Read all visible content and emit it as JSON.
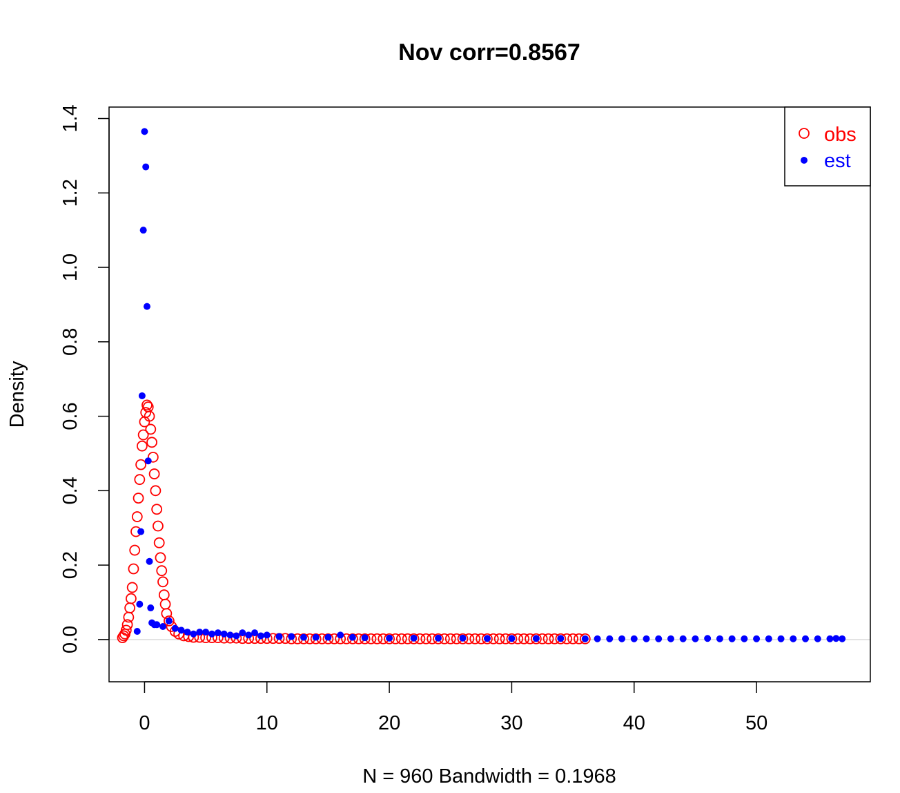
{
  "chart_data": {
    "type": "scatter",
    "title": "Nov corr=0.8567",
    "xlabel": "N = 960   Bandwidth = 0.1968",
    "ylabel": "Density",
    "xlim": [
      -2.9,
      59.3
    ],
    "ylim": [
      -0.1135,
      1.4307
    ],
    "x_ticks": [
      0,
      10,
      20,
      30,
      40,
      50
    ],
    "y_ticks": [
      0.0,
      0.2,
      0.4,
      0.6,
      0.8,
      1.0,
      1.2,
      1.4
    ],
    "x_tick_labels": [
      "0",
      "10",
      "20",
      "30",
      "40",
      "50"
    ],
    "y_tick_labels": [
      "0.0",
      "0.2",
      "0.4",
      "0.6",
      "0.8",
      "1.0",
      "1.2",
      "1.4"
    ],
    "grid": false,
    "baseline": 0,
    "legend": {
      "position": "top-right",
      "entries": [
        {
          "label": "obs",
          "color": "#ff0000",
          "marker": "open-circle"
        },
        {
          "label": "est",
          "color": "#0000ff",
          "marker": "filled-circle"
        }
      ]
    },
    "series": [
      {
        "name": "obs",
        "color": "#ff0000",
        "marker": "open-circle",
        "x": [
          -1.8,
          -1.7,
          -1.6,
          -1.5,
          -1.4,
          -1.3,
          -1.2,
          -1.1,
          -1.0,
          -0.9,
          -0.8,
          -0.7,
          -0.6,
          -0.5,
          -0.4,
          -0.3,
          -0.2,
          -0.1,
          0.0,
          0.1,
          0.2,
          0.3,
          0.4,
          0.5,
          0.6,
          0.7,
          0.8,
          0.9,
          1.0,
          1.1,
          1.2,
          1.3,
          1.4,
          1.5,
          1.6,
          1.7,
          1.8,
          2.0,
          2.2,
          2.5,
          2.8,
          3.2,
          3.6,
          4.0,
          4.5,
          5.0,
          5.5,
          6.0,
          6.5,
          7.0,
          7.5,
          8.0,
          8.5,
          9.0,
          9.5,
          10.0,
          10.5,
          11.0,
          11.5,
          12.0,
          12.5,
          13.0,
          13.5,
          14.0,
          14.5,
          15.0,
          15.5,
          16.0,
          16.5,
          17.0,
          17.5,
          18.0,
          18.5,
          19.0,
          19.5,
          20.0,
          20.5,
          21.0,
          21.5,
          22.0,
          22.5,
          23.0,
          23.5,
          24.0,
          24.5,
          25.0,
          25.5,
          26.0,
          26.5,
          27.0,
          27.5,
          28.0,
          28.5,
          29.0,
          29.5,
          30.0,
          30.5,
          31.0,
          31.5,
          32.0,
          32.5,
          33.0,
          33.5,
          34.0,
          34.5,
          35.0,
          35.5,
          36.0
        ],
        "y": [
          0.005,
          0.01,
          0.015,
          0.025,
          0.04,
          0.06,
          0.085,
          0.11,
          0.14,
          0.19,
          0.24,
          0.29,
          0.33,
          0.38,
          0.43,
          0.47,
          0.52,
          0.55,
          0.585,
          0.61,
          0.63,
          0.625,
          0.6,
          0.565,
          0.53,
          0.49,
          0.445,
          0.4,
          0.35,
          0.305,
          0.26,
          0.22,
          0.185,
          0.155,
          0.12,
          0.095,
          0.07,
          0.05,
          0.035,
          0.022,
          0.015,
          0.01,
          0.008,
          0.006,
          0.006,
          0.005,
          0.005,
          0.005,
          0.004,
          0.004,
          0.004,
          0.003,
          0.003,
          0.003,
          0.003,
          0.003,
          0.003,
          0.003,
          0.003,
          0.002,
          0.002,
          0.002,
          0.002,
          0.002,
          0.002,
          0.002,
          0.002,
          0.002,
          0.002,
          0.002,
          0.002,
          0.002,
          0.002,
          0.002,
          0.002,
          0.002,
          0.002,
          0.002,
          0.002,
          0.002,
          0.002,
          0.002,
          0.002,
          0.002,
          0.002,
          0.002,
          0.002,
          0.002,
          0.002,
          0.002,
          0.002,
          0.002,
          0.002,
          0.002,
          0.002,
          0.002,
          0.002,
          0.002,
          0.002,
          0.002,
          0.002,
          0.002,
          0.002,
          0.002,
          0.002,
          0.002,
          0.002,
          0.002
        ]
      },
      {
        "name": "est",
        "color": "#0000ff",
        "marker": "filled-circle",
        "x": [
          -0.6,
          -0.4,
          -0.3,
          -0.2,
          -0.1,
          0.0,
          0.1,
          0.2,
          0.3,
          0.4,
          0.5,
          0.6,
          0.8,
          1.0,
          1.5,
          2.0,
          2.5,
          3.0,
          3.5,
          4.0,
          4.5,
          5.0,
          5.5,
          6.0,
          6.5,
          7.0,
          7.5,
          8.0,
          8.5,
          9.0,
          9.5,
          10.0,
          11.0,
          12.0,
          13.0,
          14.0,
          15.0,
          16.0,
          17.0,
          18.0,
          20.0,
          22.0,
          24.0,
          26.0,
          28.0,
          30.0,
          32.0,
          34.0,
          36.0,
          37.0,
          38.0,
          39.0,
          40.0,
          41.0,
          42.0,
          43.0,
          44.0,
          45.0,
          46.0,
          47.0,
          48.0,
          49.0,
          50.0,
          51.0,
          52.0,
          53.0,
          54.0,
          55.0,
          56.0,
          56.5,
          57.0
        ],
        "y": [
          0.022,
          0.095,
          0.29,
          0.655,
          1.1,
          1.365,
          1.27,
          0.895,
          0.48,
          0.21,
          0.085,
          0.045,
          0.04,
          0.04,
          0.035,
          0.05,
          0.03,
          0.025,
          0.02,
          0.015,
          0.02,
          0.02,
          0.015,
          0.018,
          0.015,
          0.012,
          0.01,
          0.018,
          0.012,
          0.018,
          0.01,
          0.012,
          0.008,
          0.008,
          0.006,
          0.006,
          0.006,
          0.012,
          0.006,
          0.005,
          0.004,
          0.004,
          0.004,
          0.004,
          0.003,
          0.003,
          0.003,
          0.003,
          0.002,
          0.002,
          0.002,
          0.002,
          0.002,
          0.002,
          0.002,
          0.002,
          0.002,
          0.002,
          0.003,
          0.002,
          0.002,
          0.002,
          0.002,
          0.002,
          0.002,
          0.002,
          0.002,
          0.002,
          0.002,
          0.003,
          0.002
        ]
      }
    ]
  }
}
